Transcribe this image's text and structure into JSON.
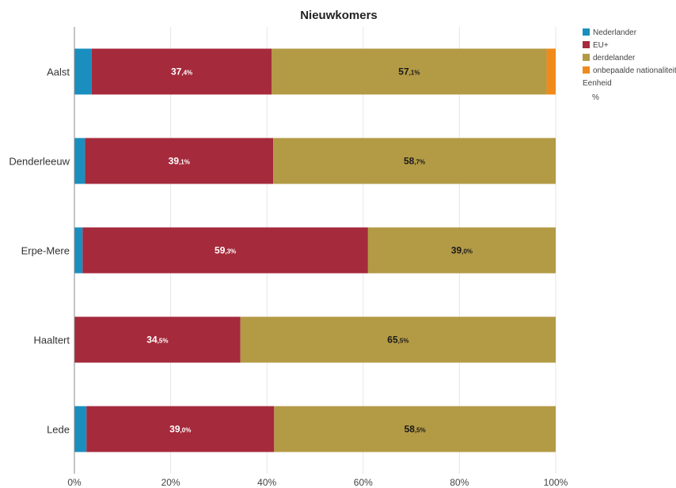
{
  "chart_data": {
    "type": "bar",
    "orientation": "horizontal",
    "stacked": true,
    "title": "Nieuwkomers",
    "categories": [
      "Aalst",
      "Denderleeuw",
      "Erpe-Mere",
      "Haaltert",
      "Lede"
    ],
    "series": [
      {
        "name": "Nederlander",
        "color": "#1a8fbf",
        "values": [
          3.6,
          2.2,
          1.7,
          0.0,
          2.5
        ]
      },
      {
        "name": "EU+",
        "color": "#a52a3c",
        "values": [
          37.4,
          39.1,
          59.3,
          34.5,
          39.0
        ]
      },
      {
        "name": "derdelander",
        "color": "#b39a45",
        "values": [
          57.1,
          58.7,
          39.0,
          65.5,
          58.5
        ]
      },
      {
        "name": "onbepaalde nationaliteit",
        "color": "#f08a1c",
        "values": [
          1.9,
          0.0,
          0.0,
          0.0,
          0.0
        ]
      }
    ],
    "data_labels": [
      [
        null,
        {
          "int": "37",
          "dec": ",4%"
        },
        {
          "int": "57",
          "dec": ",1%"
        },
        null
      ],
      [
        null,
        {
          "int": "39",
          "dec": ",1%"
        },
        {
          "int": "58",
          "dec": ",7%"
        },
        null
      ],
      [
        null,
        {
          "int": "59",
          "dec": ",3%"
        },
        {
          "int": "39",
          "dec": ",0%"
        },
        null
      ],
      [
        null,
        {
          "int": "34",
          "dec": ",5%"
        },
        {
          "int": "65",
          "dec": ",5%"
        },
        null
      ],
      [
        null,
        {
          "int": "39",
          "dec": ",0%"
        },
        {
          "int": "58",
          "dec": ",5%"
        },
        null
      ]
    ],
    "label_colors": [
      "#ffffff",
      "#ffffff",
      "#1a1a1a",
      "#1a1a1a"
    ],
    "xlim": [
      0,
      100
    ],
    "xticks": [
      "0%",
      "20%",
      "40%",
      "60%",
      "80%",
      "100%"
    ],
    "legend": {
      "placement": "top-right",
      "unit_title": "Eenheid",
      "unit": "%"
    },
    "grid": true
  }
}
